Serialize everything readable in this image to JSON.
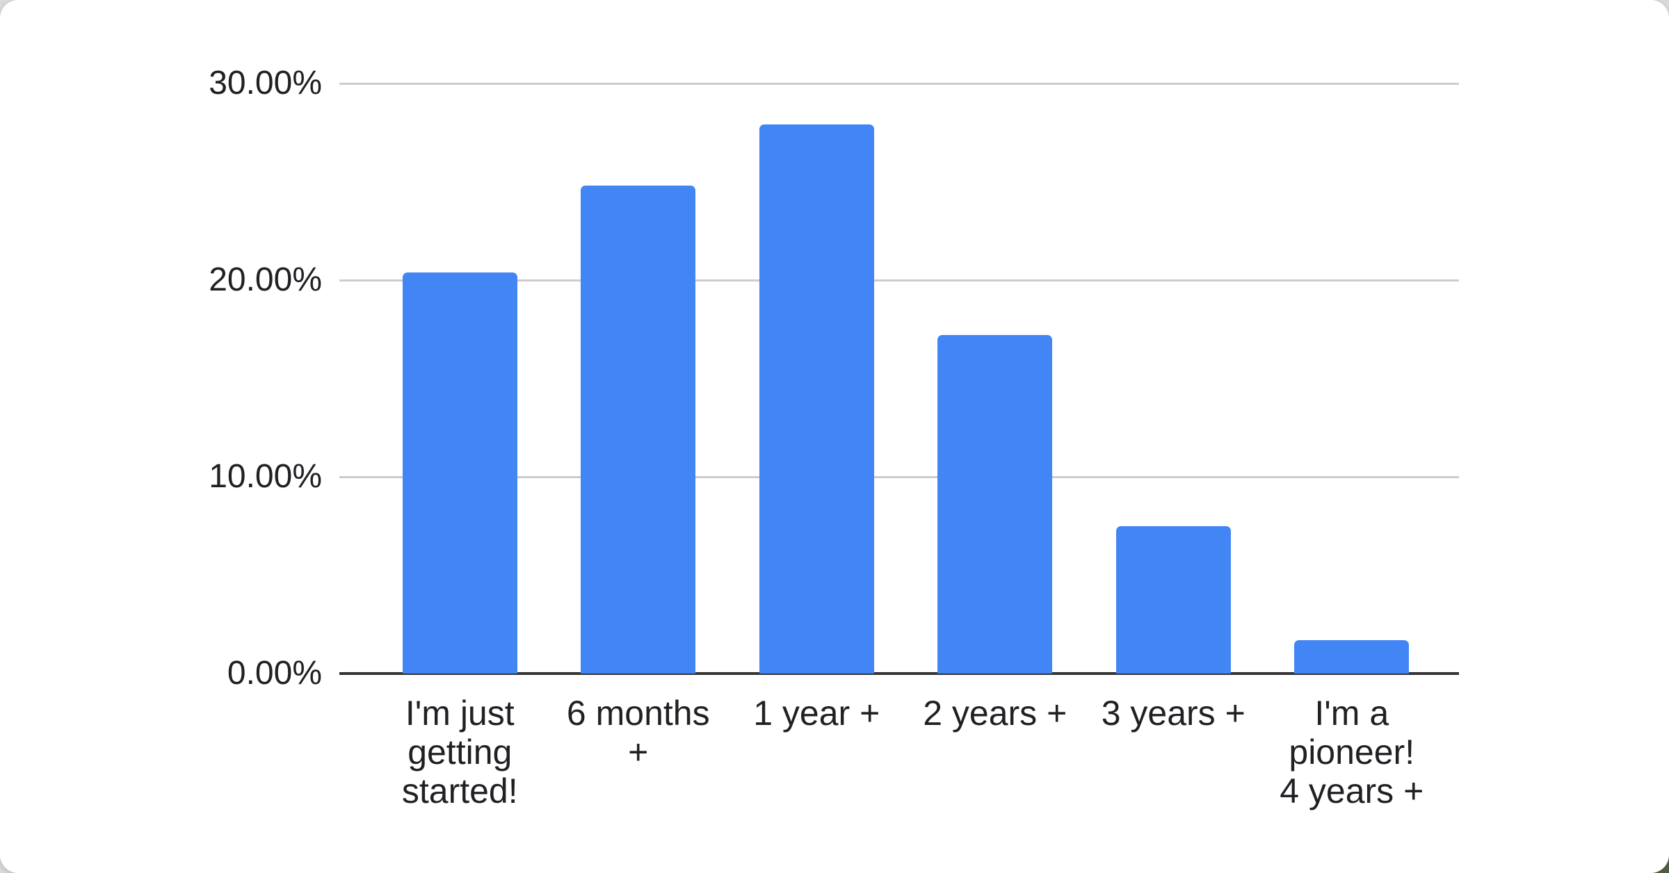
{
  "chart_data": {
    "type": "bar",
    "title": "",
    "xlabel": "",
    "ylabel": "",
    "categories": [
      "I'm just getting started!",
      "6 months +",
      "1 year +",
      "2 years +",
      "3 years +",
      "I'm a pioneer! 4 years +"
    ],
    "category_lines": [
      [
        "I'm just",
        "getting",
        "started!"
      ],
      [
        "6 months",
        "+"
      ],
      [
        "1 year +"
      ],
      [
        "2 years +"
      ],
      [
        "3 years +"
      ],
      [
        "I'm a",
        "pioneer!",
        "4 years +"
      ]
    ],
    "values": [
      20.4,
      24.8,
      27.9,
      17.2,
      7.5,
      1.7
    ],
    "unit": "%",
    "ylim": [
      0,
      30
    ],
    "y_ticks": [
      {
        "label": "30.00%",
        "value": 30
      },
      {
        "label": "20.00%",
        "value": 20
      },
      {
        "label": "10.00%",
        "value": 10
      },
      {
        "label": "0.00%",
        "value": 0
      }
    ],
    "grid": true,
    "legend": "none",
    "colors": {
      "bar": "#4285F4",
      "gridline": "#cccccc",
      "axis_line": "#333333",
      "tick_label": "#202124",
      "card_background": "#ffffff",
      "page_background": "#d9dcda"
    }
  }
}
